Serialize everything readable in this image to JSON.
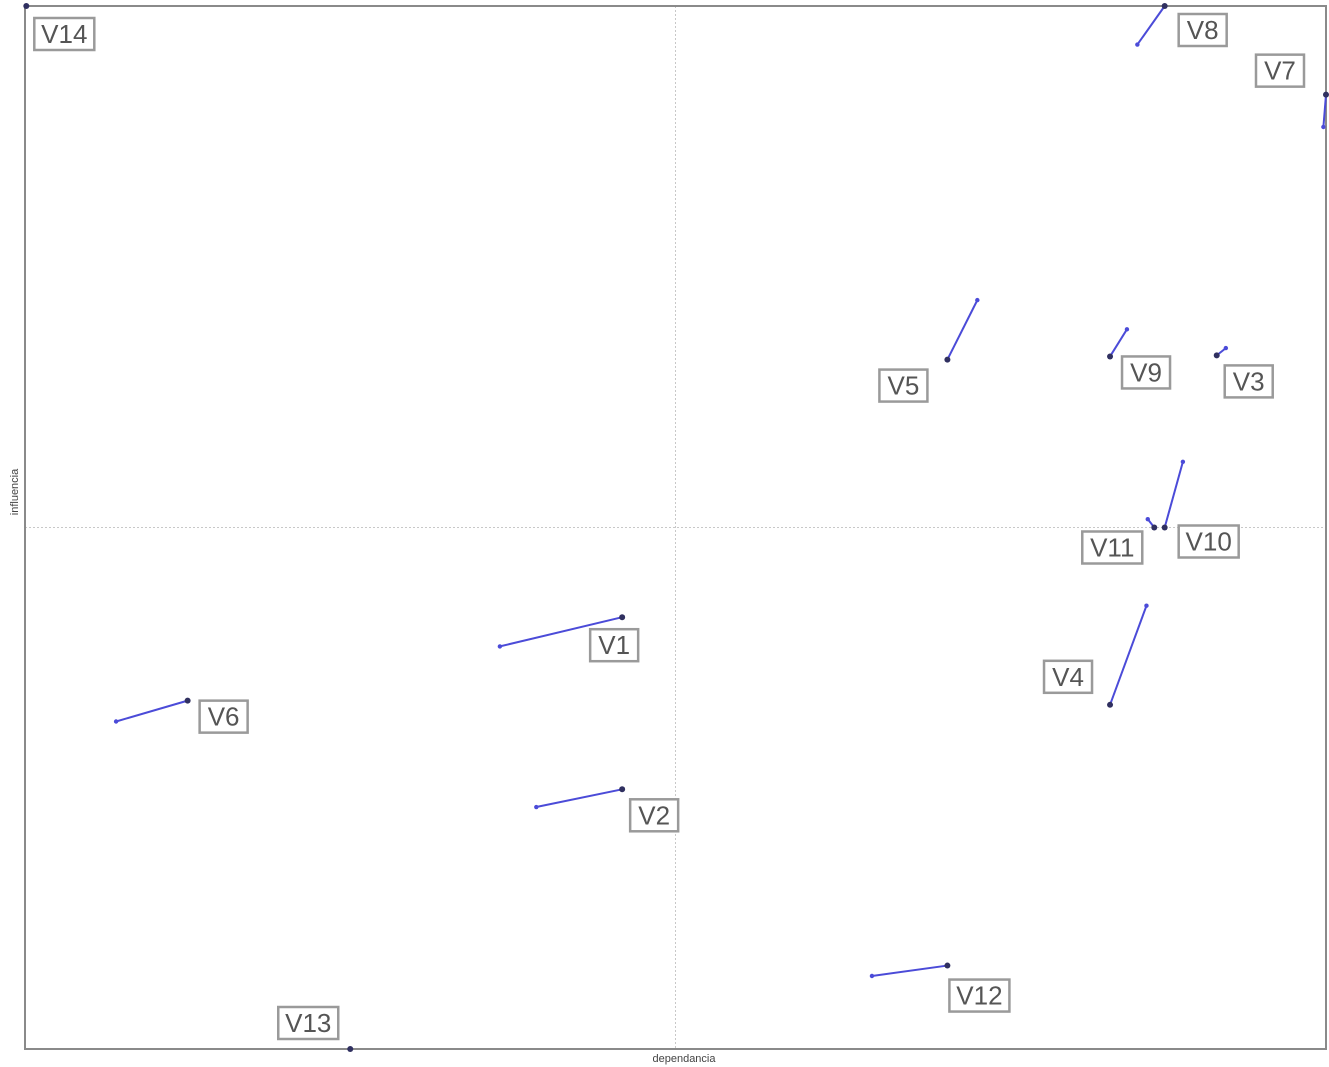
{
  "chart_data": {
    "type": "scatter",
    "title": "",
    "xlabel": "dependancia",
    "ylabel": "influencia",
    "xlim": [
      0,
      1
    ],
    "ylim": [
      0,
      1
    ],
    "grid": false,
    "reference_lines": {
      "x": 0.5,
      "y": 0.5
    },
    "points": [
      {
        "label": "V14",
        "x": 0.001,
        "y": 1.0,
        "prev_x": 0.001,
        "prev_y": 1.0
      },
      {
        "label": "V8",
        "x": 0.876,
        "y": 1.0,
        "prev_x": 0.855,
        "prev_y": 0.963
      },
      {
        "label": "V7",
        "x": 1.0,
        "y": 0.915,
        "prev_x": 0.998,
        "prev_y": 0.884
      },
      {
        "label": "V5",
        "x": 0.709,
        "y": 0.661,
        "prev_x": 0.732,
        "prev_y": 0.718
      },
      {
        "label": "V9",
        "x": 0.834,
        "y": 0.664,
        "prev_x": 0.847,
        "prev_y": 0.69
      },
      {
        "label": "V3",
        "x": 0.916,
        "y": 0.665,
        "prev_x": 0.923,
        "prev_y": 0.672
      },
      {
        "label": "V10",
        "x": 0.876,
        "y": 0.5,
        "prev_x": 0.89,
        "prev_y": 0.563
      },
      {
        "label": "V11",
        "x": 0.868,
        "y": 0.5,
        "prev_x": 0.863,
        "prev_y": 0.508
      },
      {
        "label": "V1",
        "x": 0.459,
        "y": 0.414,
        "prev_x": 0.365,
        "prev_y": 0.386
      },
      {
        "label": "V4",
        "x": 0.834,
        "y": 0.33,
        "prev_x": 0.862,
        "prev_y": 0.425
      },
      {
        "label": "V6",
        "x": 0.125,
        "y": 0.334,
        "prev_x": 0.07,
        "prev_y": 0.314
      },
      {
        "label": "V2",
        "x": 0.459,
        "y": 0.249,
        "prev_x": 0.393,
        "prev_y": 0.232
      },
      {
        "label": "V12",
        "x": 0.709,
        "y": 0.08,
        "prev_x": 0.651,
        "prev_y": 0.07
      },
      {
        "label": "V13",
        "x": 0.25,
        "y": 0.0,
        "prev_x": 0.25,
        "prev_y": 0.0
      }
    ]
  }
}
